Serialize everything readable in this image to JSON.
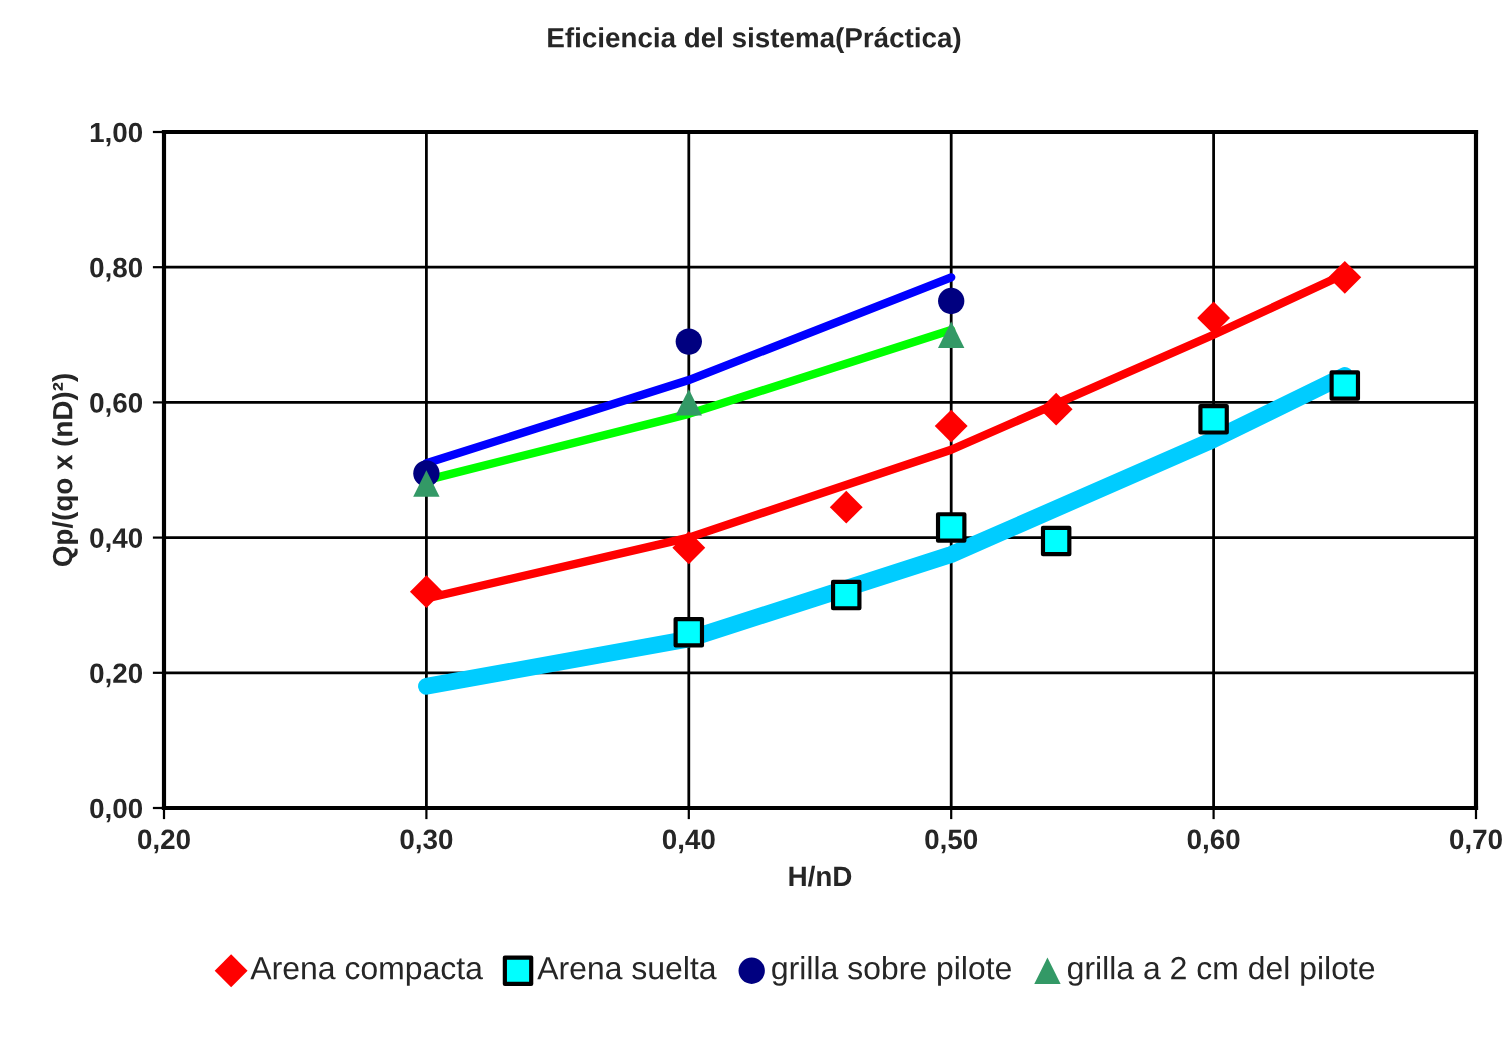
{
  "chart_data": {
    "type": "scatter",
    "title": "Eficiencia del sistema(Práctica)",
    "xlabel": "H/nD",
    "ylabel": "Qp/(qo x (nD)²)",
    "xlim": [
      0.2,
      0.7
    ],
    "xticks": [
      {
        "value": 0.2,
        "label": "0,20"
      },
      {
        "value": 0.3,
        "label": "0,30"
      },
      {
        "value": 0.4,
        "label": "0,40"
      },
      {
        "value": 0.5,
        "label": "0,50"
      },
      {
        "value": 0.6,
        "label": "0,60"
      },
      {
        "value": 0.7,
        "label": "0,70"
      }
    ],
    "ylim": [
      0,
      1
    ],
    "yticks": [
      {
        "value": 0,
        "label": "0,00"
      },
      {
        "value": 0.2,
        "label": "0,20"
      },
      {
        "value": 0.4,
        "label": "0,40"
      },
      {
        "value": 0.6,
        "label": "0,60"
      },
      {
        "value": 0.8,
        "label": "0,80"
      },
      {
        "value": 1,
        "label": "1,00"
      }
    ],
    "grid": true,
    "legend": "bottom",
    "series": [
      {
        "type": "line",
        "color": "#ff0000",
        "x": [
          0.3,
          0.4,
          0.5,
          0.6,
          0.65
        ],
        "values": [
          0.31,
          0.4,
          0.53,
          0.7,
          0.79
        ]
      },
      {
        "type": "line",
        "color": "#00ccff",
        "x": [
          0.3,
          0.4,
          0.5,
          0.6,
          0.65
        ],
        "values": [
          0.18,
          0.25,
          0.375,
          0.545,
          0.64
        ]
      },
      {
        "type": "line",
        "color": "#0000ff",
        "x": [
          0.3,
          0.4,
          0.5
        ],
        "values": [
          0.51,
          0.633,
          0.785
        ]
      },
      {
        "type": "line",
        "color": "#00ff00",
        "x": [
          0.3,
          0.4,
          0.5
        ],
        "values": [
          0.485,
          0.583,
          0.707
        ]
      },
      {
        "name": "Arena compacta",
        "color": "#ff0000",
        "marker": "diamond",
        "x": [
          0.3,
          0.4,
          0.46,
          0.5,
          0.54,
          0.6,
          0.65
        ],
        "values": [
          0.32,
          0.385,
          0.445,
          0.565,
          0.59,
          0.725,
          0.785
        ]
      },
      {
        "name": "Arena suelta",
        "color": "#00ffff",
        "marker": "square",
        "x": [
          0.4,
          0.46,
          0.5,
          0.54,
          0.6,
          0.65
        ],
        "values": [
          0.26,
          0.315,
          0.415,
          0.395,
          0.575,
          0.625
        ]
      },
      {
        "name": "grilla sobre pilote",
        "color": "#000080",
        "marker": "circle",
        "x": [
          0.3,
          0.4,
          0.5
        ],
        "values": [
          0.495,
          0.69,
          0.75
        ]
      },
      {
        "name": "grilla a 2 cm del pilote",
        "color": "#339966",
        "marker": "triangle",
        "x": [
          0.3,
          0.4,
          0.5
        ],
        "values": [
          0.48,
          0.6,
          0.7
        ]
      }
    ]
  }
}
